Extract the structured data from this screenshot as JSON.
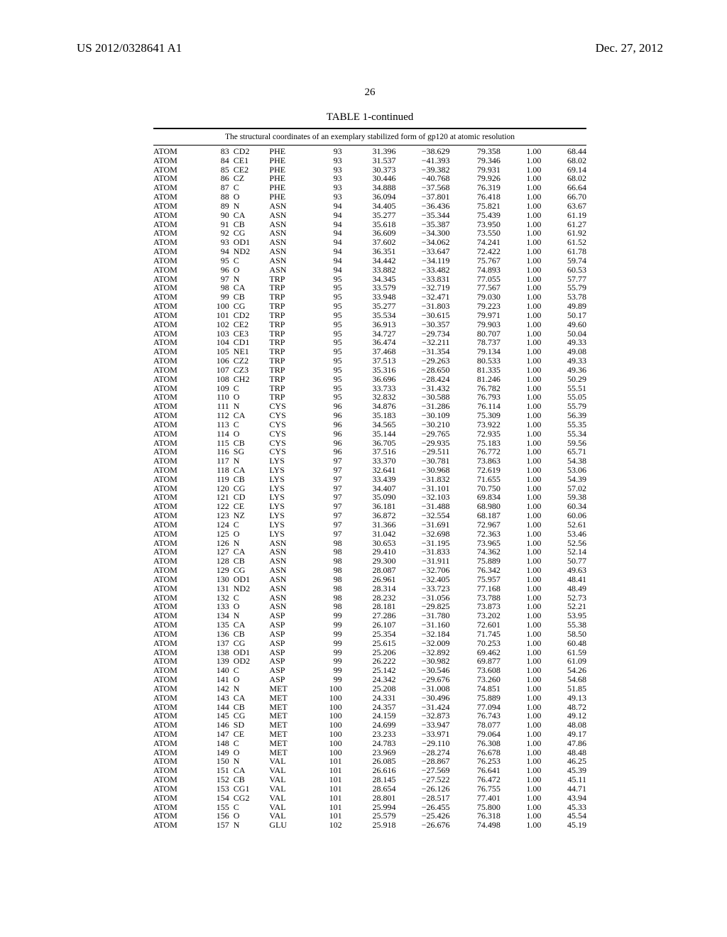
{
  "header": {
    "left": "US 2012/0328641 A1",
    "right": "Dec. 27, 2012",
    "pagenum": "26"
  },
  "table": {
    "title": "TABLE 1-continued",
    "caption": "The structural coordinates of an exemplary stabilized form of gp120 at atomic resolution",
    "col_classes": [
      "c0",
      "c1",
      "c2",
      "c3",
      "c4",
      "c5",
      "c6",
      "c7",
      "c8",
      "c9"
    ],
    "rows": [
      [
        "ATOM",
        "83",
        "CD2",
        "PHE",
        "93",
        "31.396",
        "−38.629",
        "79.358",
        "1.00",
        "68.44"
      ],
      [
        "ATOM",
        "84",
        "CE1",
        "PHE",
        "93",
        "31.537",
        "−41.393",
        "79.346",
        "1.00",
        "68.02"
      ],
      [
        "ATOM",
        "85",
        "CE2",
        "PHE",
        "93",
        "30.373",
        "−39.382",
        "79.931",
        "1.00",
        "69.14"
      ],
      [
        "ATOM",
        "86",
        "CZ",
        "PHE",
        "93",
        "30.446",
        "−40.768",
        "79.926",
        "1.00",
        "68.02"
      ],
      [
        "ATOM",
        "87",
        "C",
        "PHE",
        "93",
        "34.888",
        "−37.568",
        "76.319",
        "1.00",
        "66.64"
      ],
      [
        "ATOM",
        "88",
        "O",
        "PHE",
        "93",
        "36.094",
        "−37.801",
        "76.418",
        "1.00",
        "66.70"
      ],
      [
        "ATOM",
        "89",
        "N",
        "ASN",
        "94",
        "34.405",
        "−36.436",
        "75.821",
        "1.00",
        "63.67"
      ],
      [
        "ATOM",
        "90",
        "CA",
        "ASN",
        "94",
        "35.277",
        "−35.344",
        "75.439",
        "1.00",
        "61.19"
      ],
      [
        "ATOM",
        "91",
        "CB",
        "ASN",
        "94",
        "35.618",
        "−35.387",
        "73.950",
        "1.00",
        "61.27"
      ],
      [
        "ATOM",
        "92",
        "CG",
        "ASN",
        "94",
        "36.609",
        "−34.300",
        "73.550",
        "1.00",
        "61.92"
      ],
      [
        "ATOM",
        "93",
        "OD1",
        "ASN",
        "94",
        "37.602",
        "−34.062",
        "74.241",
        "1.00",
        "61.52"
      ],
      [
        "ATOM",
        "94",
        "ND2",
        "ASN",
        "94",
        "36.351",
        "−33.647",
        "72.422",
        "1.00",
        "61.78"
      ],
      [
        "ATOM",
        "95",
        "C",
        "ASN",
        "94",
        "34.442",
        "−34.119",
        "75.767",
        "1.00",
        "59.74"
      ],
      [
        "ATOM",
        "96",
        "O",
        "ASN",
        "94",
        "33.882",
        "−33.482",
        "74.893",
        "1.00",
        "60.53"
      ],
      [
        "ATOM",
        "97",
        "N",
        "TRP",
        "95",
        "34.345",
        "−33.831",
        "77.055",
        "1.00",
        "57.77"
      ],
      [
        "ATOM",
        "98",
        "CA",
        "TRP",
        "95",
        "33.579",
        "−32.719",
        "77.567",
        "1.00",
        "55.79"
      ],
      [
        "ATOM",
        "99",
        "CB",
        "TRP",
        "95",
        "33.948",
        "−32.471",
        "79.030",
        "1.00",
        "53.78"
      ],
      [
        "ATOM",
        "100",
        "CG",
        "TRP",
        "95",
        "35.277",
        "−31.803",
        "79.223",
        "1.00",
        "49.89"
      ],
      [
        "ATOM",
        "101",
        "CD2",
        "TRP",
        "95",
        "35.534",
        "−30.615",
        "79.971",
        "1.00",
        "50.17"
      ],
      [
        "ATOM",
        "102",
        "CE2",
        "TRP",
        "95",
        "36.913",
        "−30.357",
        "79.903",
        "1.00",
        "49.60"
      ],
      [
        "ATOM",
        "103",
        "CE3",
        "TRP",
        "95",
        "34.727",
        "−29.734",
        "80.707",
        "1.00",
        "50.04"
      ],
      [
        "ATOM",
        "104",
        "CD1",
        "TRP",
        "95",
        "36.474",
        "−32.211",
        "78.737",
        "1.00",
        "49.33"
      ],
      [
        "ATOM",
        "105",
        "NE1",
        "TRP",
        "95",
        "37.468",
        "−31.354",
        "79.134",
        "1.00",
        "49.08"
      ],
      [
        "ATOM",
        "106",
        "CZ2",
        "TRP",
        "95",
        "37.513",
        "−29.263",
        "80.533",
        "1.00",
        "49.33"
      ],
      [
        "ATOM",
        "107",
        "CZ3",
        "TRP",
        "95",
        "35.316",
        "−28.650",
        "81.335",
        "1.00",
        "49.36"
      ],
      [
        "ATOM",
        "108",
        "CH2",
        "TRP",
        "95",
        "36.696",
        "−28.424",
        "81.246",
        "1.00",
        "50.29"
      ],
      [
        "ATOM",
        "109",
        "C",
        "TRP",
        "95",
        "33.733",
        "−31.432",
        "76.782",
        "1.00",
        "55.51"
      ],
      [
        "ATOM",
        "110",
        "O",
        "TRP",
        "95",
        "32.832",
        "−30.588",
        "76.793",
        "1.00",
        "55.05"
      ],
      [
        "ATOM",
        "111",
        "N",
        "CYS",
        "96",
        "34.876",
        "−31.286",
        "76.114",
        "1.00",
        "55.79"
      ],
      [
        "ATOM",
        "112",
        "CA",
        "CYS",
        "96",
        "35.183",
        "−30.109",
        "75.309",
        "1.00",
        "56.39"
      ],
      [
        "ATOM",
        "113",
        "C",
        "CYS",
        "96",
        "34.565",
        "−30.210",
        "73.922",
        "1.00",
        "55.35"
      ],
      [
        "ATOM",
        "114",
        "O",
        "CYS",
        "96",
        "35.144",
        "−29.765",
        "72.935",
        "1.00",
        "55.34"
      ],
      [
        "ATOM",
        "115",
        "CB",
        "CYS",
        "96",
        "36.705",
        "−29.935",
        "75.183",
        "1.00",
        "59.56"
      ],
      [
        "ATOM",
        "116",
        "SG",
        "CYS",
        "96",
        "37.516",
        "−29.511",
        "76.772",
        "1.00",
        "65.71"
      ],
      [
        "ATOM",
        "117",
        "N",
        "LYS",
        "97",
        "33.370",
        "−30.781",
        "73.863",
        "1.00",
        "54.38"
      ],
      [
        "ATOM",
        "118",
        "CA",
        "LYS",
        "97",
        "32.641",
        "−30.968",
        "72.619",
        "1.00",
        "53.06"
      ],
      [
        "ATOM",
        "119",
        "CB",
        "LYS",
        "97",
        "33.439",
        "−31.832",
        "71.655",
        "1.00",
        "54.39"
      ],
      [
        "ATOM",
        "120",
        "CG",
        "LYS",
        "97",
        "34.407",
        "−31.101",
        "70.750",
        "1.00",
        "57.02"
      ],
      [
        "ATOM",
        "121",
        "CD",
        "LYS",
        "97",
        "35.090",
        "−32.103",
        "69.834",
        "1.00",
        "59.38"
      ],
      [
        "ATOM",
        "122",
        "CE",
        "LYS",
        "97",
        "36.181",
        "−31.488",
        "68.980",
        "1.00",
        "60.34"
      ],
      [
        "ATOM",
        "123",
        "NZ",
        "LYS",
        "97",
        "36.872",
        "−32.554",
        "68.187",
        "1.00",
        "60.06"
      ],
      [
        "ATOM",
        "124",
        "C",
        "LYS",
        "97",
        "31.366",
        "−31.691",
        "72.967",
        "1.00",
        "52.61"
      ],
      [
        "ATOM",
        "125",
        "O",
        "LYS",
        "97",
        "31.042",
        "−32.698",
        "72.363",
        "1.00",
        "53.46"
      ],
      [
        "ATOM",
        "126",
        "N",
        "ASN",
        "98",
        "30.653",
        "−31.195",
        "73.965",
        "1.00",
        "52.56"
      ],
      [
        "ATOM",
        "127",
        "CA",
        "ASN",
        "98",
        "29.410",
        "−31.833",
        "74.362",
        "1.00",
        "52.14"
      ],
      [
        "ATOM",
        "128",
        "CB",
        "ASN",
        "98",
        "29.300",
        "−31.911",
        "75.889",
        "1.00",
        "50.77"
      ],
      [
        "ATOM",
        "129",
        "CG",
        "ASN",
        "98",
        "28.087",
        "−32.706",
        "76.342",
        "1.00",
        "49.63"
      ],
      [
        "ATOM",
        "130",
        "OD1",
        "ASN",
        "98",
        "26.961",
        "−32.405",
        "75.957",
        "1.00",
        "48.41"
      ],
      [
        "ATOM",
        "131",
        "ND2",
        "ASN",
        "98",
        "28.314",
        "−33.723",
        "77.168",
        "1.00",
        "48.49"
      ],
      [
        "ATOM",
        "132",
        "C",
        "ASN",
        "98",
        "28.232",
        "−31.056",
        "73.788",
        "1.00",
        "52.73"
      ],
      [
        "ATOM",
        "133",
        "O",
        "ASN",
        "98",
        "28.181",
        "−29.825",
        "73.873",
        "1.00",
        "52.21"
      ],
      [
        "ATOM",
        "134",
        "N",
        "ASP",
        "99",
        "27.286",
        "−31.780",
        "73.202",
        "1.00",
        "53.95"
      ],
      [
        "ATOM",
        "135",
        "CA",
        "ASP",
        "99",
        "26.107",
        "−31.160",
        "72.601",
        "1.00",
        "55.38"
      ],
      [
        "ATOM",
        "136",
        "CB",
        "ASP",
        "99",
        "25.354",
        "−32.184",
        "71.745",
        "1.00",
        "58.50"
      ],
      [
        "ATOM",
        "137",
        "CG",
        "ASP",
        "99",
        "25.615",
        "−32.009",
        "70.253",
        "1.00",
        "60.48"
      ],
      [
        "ATOM",
        "138",
        "OD1",
        "ASP",
        "99",
        "25.206",
        "−32.892",
        "69.462",
        "1.00",
        "61.59"
      ],
      [
        "ATOM",
        "139",
        "OD2",
        "ASP",
        "99",
        "26.222",
        "−30.982",
        "69.877",
        "1.00",
        "61.09"
      ],
      [
        "ATOM",
        "140",
        "C",
        "ASP",
        "99",
        "25.142",
        "−30.546",
        "73.608",
        "1.00",
        "54.26"
      ],
      [
        "ATOM",
        "141",
        "O",
        "ASP",
        "99",
        "24.342",
        "−29.676",
        "73.260",
        "1.00",
        "54.68"
      ],
      [
        "ATOM",
        "142",
        "N",
        "MET",
        "100",
        "25.208",
        "−31.008",
        "74.851",
        "1.00",
        "51.85"
      ],
      [
        "ATOM",
        "143",
        "CA",
        "MET",
        "100",
        "24.331",
        "−30.496",
        "75.889",
        "1.00",
        "49.13"
      ],
      [
        "ATOM",
        "144",
        "CB",
        "MET",
        "100",
        "24.357",
        "−31.424",
        "77.094",
        "1.00",
        "48.72"
      ],
      [
        "ATOM",
        "145",
        "CG",
        "MET",
        "100",
        "24.159",
        "−32.873",
        "76.743",
        "1.00",
        "49.12"
      ],
      [
        "ATOM",
        "146",
        "SD",
        "MET",
        "100",
        "24.699",
        "−33.947",
        "78.077",
        "1.00",
        "48.08"
      ],
      [
        "ATOM",
        "147",
        "CE",
        "MET",
        "100",
        "23.233",
        "−33.971",
        "79.064",
        "1.00",
        "49.17"
      ],
      [
        "ATOM",
        "148",
        "C",
        "MET",
        "100",
        "24.783",
        "−29.110",
        "76.308",
        "1.00",
        "47.86"
      ],
      [
        "ATOM",
        "149",
        "O",
        "MET",
        "100",
        "23.969",
        "−28.274",
        "76.678",
        "1.00",
        "48.48"
      ],
      [
        "ATOM",
        "150",
        "N",
        "VAL",
        "101",
        "26.085",
        "−28.867",
        "76.253",
        "1.00",
        "46.25"
      ],
      [
        "ATOM",
        "151",
        "CA",
        "VAL",
        "101",
        "26.616",
        "−27.569",
        "76.641",
        "1.00",
        "45.39"
      ],
      [
        "ATOM",
        "152",
        "CB",
        "VAL",
        "101",
        "28.145",
        "−27.522",
        "76.472",
        "1.00",
        "45.11"
      ],
      [
        "ATOM",
        "153",
        "CG1",
        "VAL",
        "101",
        "28.654",
        "−26.126",
        "76.755",
        "1.00",
        "44.71"
      ],
      [
        "ATOM",
        "154",
        "CG2",
        "VAL",
        "101",
        "28.801",
        "−28.517",
        "77.401",
        "1.00",
        "43.94"
      ],
      [
        "ATOM",
        "155",
        "C",
        "VAL",
        "101",
        "25.994",
        "−26.455",
        "75.800",
        "1.00",
        "45.33"
      ],
      [
        "ATOM",
        "156",
        "O",
        "VAL",
        "101",
        "25.579",
        "−25.426",
        "76.318",
        "1.00",
        "45.54"
      ],
      [
        "ATOM",
        "157",
        "N",
        "GLU",
        "102",
        "25.918",
        "−26.676",
        "74.498",
        "1.00",
        "45.19"
      ]
    ]
  }
}
